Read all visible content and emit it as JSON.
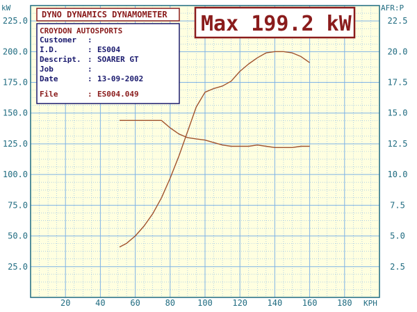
{
  "header": {
    "title": "DYNO DYNAMICS DYNAMOMETER",
    "max_label": "Max 199.2 kW"
  },
  "info": {
    "company": "CROYDON AUTOSPORTS",
    "rows": [
      {
        "label": "Customer",
        "sep": ":",
        "value": ""
      },
      {
        "label": "I.D.",
        "sep": ":",
        "value": "ES004"
      },
      {
        "label": "Descript.",
        "sep": ":",
        "value": "SOARER GT"
      },
      {
        "label": "Job",
        "sep": ":",
        "value": ""
      },
      {
        "label": "Date",
        "sep": ":",
        "value": "13-09-2002"
      }
    ],
    "file_label": "File",
    "file_sep": ":",
    "file_value": "ES004.049"
  },
  "colors": {
    "background": "#ffffe0",
    "grid": "#7fb3e6",
    "axis": "#1f6b80",
    "curve": "#a0522d",
    "accent": "#8a1c1c"
  },
  "chart_data": {
    "type": "line",
    "xlabel": "KPH",
    "ylabel_left": "kW",
    "ylabel_right": "AFR:P",
    "x_ticks": [
      20,
      40,
      60,
      80,
      100,
      120,
      140,
      160,
      180
    ],
    "y_left_ticks": [
      25.0,
      50.0,
      75.0,
      100.0,
      125.0,
      150.0,
      175.0,
      200.0,
      225.0
    ],
    "y_left_tick_labels": [
      "25.0",
      "50.0",
      "75.0",
      "100.0",
      "125.0",
      "150.0",
      "175.0",
      "200.0",
      "225.0"
    ],
    "y_right_ticks": [
      2.5,
      5.0,
      7.5,
      10.0,
      12.5,
      15.0,
      17.5,
      20.0,
      22.5
    ],
    "y_right_tick_labels": [
      "2.5",
      "5.0",
      "7.5",
      "10.0",
      "12.5",
      "15.0",
      "17.5",
      "20.0",
      "22.5"
    ],
    "xlim": [
      0,
      200
    ],
    "ylim_left": [
      0,
      237.5
    ],
    "ylim_right": [
      0,
      23.75
    ],
    "grid": true,
    "series": [
      {
        "axis": "left",
        "x": [
          51,
          55,
          60,
          65,
          70,
          75,
          80,
          85,
          90,
          95,
          100,
          105,
          110,
          115,
          120,
          125,
          130,
          135,
          140,
          145,
          150,
          155,
          160
        ],
        "values": [
          41,
          44,
          50,
          58,
          68,
          81,
          97,
          115,
          135,
          155,
          167,
          170,
          172,
          176,
          184,
          190,
          195,
          199,
          200,
          200,
          199,
          196,
          191
        ]
      },
      {
        "axis": "right",
        "x": [
          51,
          55,
          60,
          65,
          70,
          75,
          80,
          85,
          90,
          95,
          100,
          105,
          110,
          115,
          120,
          125,
          130,
          135,
          140,
          145,
          150,
          155,
          160
        ],
        "values": [
          14.4,
          14.4,
          14.4,
          14.4,
          14.4,
          14.4,
          13.8,
          13.3,
          13.0,
          12.9,
          12.8,
          12.6,
          12.4,
          12.3,
          12.3,
          12.3,
          12.4,
          12.3,
          12.2,
          12.2,
          12.2,
          12.3,
          12.3
        ]
      }
    ]
  }
}
